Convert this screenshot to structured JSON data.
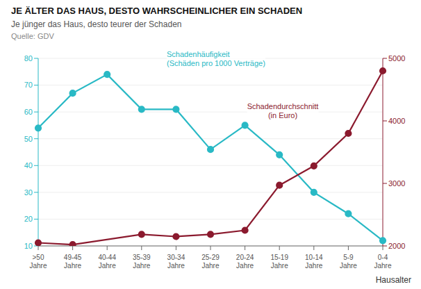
{
  "chart_data": {
    "type": "line",
    "title": "JE ÄLTER DAS HAUS, DESTO WAHRSCHEINLICHER EIN SCHADEN",
    "subtitle": "Je jünger das Haus, desto teurer der Schaden",
    "source": "Quelle: GDV",
    "x_label": "Hausalter",
    "categories": [
      ">50\nJahre",
      "49-45\nJahre",
      "40-44\nJahre",
      "35-39\nJahre",
      "30-34\nJahre",
      "25-29\nJahre",
      "20-24\nJahre",
      "15-19\nJahre",
      "10-14\nJahre",
      "5-9\nJahre",
      "0-4\nJahre"
    ],
    "series": [
      {
        "name": "Schadenhäufigkeit\n(Schäden pro 1000 Verträge)",
        "color": "#29B9C5",
        "marker": "circle",
        "values": [
          54,
          67,
          74,
          61,
          61,
          46,
          55,
          44,
          30,
          22,
          12
        ]
      },
      {
        "name": "Schadendurchschnitt\n(in Euro)",
        "color": "#8B1A2E",
        "marker": "circle",
        "axis": "y2",
        "values": [
          2050,
          2020,
          null,
          2185,
          2150,
          2185,
          2250,
          2970,
          3280,
          3800,
          4800
        ]
      }
    ],
    "ylim": [
      10,
      80
    ],
    "yticks": [
      10,
      20,
      30,
      40,
      50,
      60,
      70,
      80
    ],
    "y2lim": [
      2000,
      5000
    ],
    "y2ticks": [
      2000,
      3000,
      4000,
      5000
    ],
    "grid": true
  }
}
